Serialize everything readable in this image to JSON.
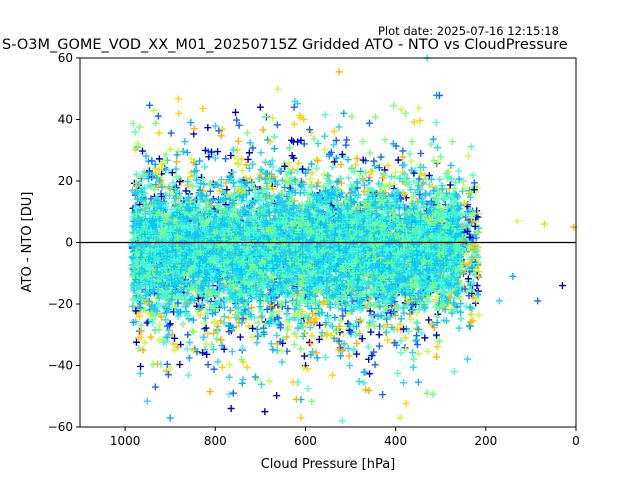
{
  "plot_date_label": "Plot date: 2025-07-16 12:15:18",
  "chart_data": {
    "type": "scatter",
    "title": "S-O3M_GOME_VOD_XX_M01_20250715Z Gridded ATO - NTO vs CloudPressure",
    "xlabel": "Cloud Pressure [hPa]",
    "ylabel": "ATO - NTO [DU]",
    "xlim": [
      1100,
      0
    ],
    "ylim": [
      -60,
      60
    ],
    "x_inverted": true,
    "xticks": [
      1000,
      800,
      600,
      400,
      200,
      0
    ],
    "yticks": [
      -60,
      -40,
      -20,
      0,
      20,
      40,
      60
    ],
    "reference_line_y": 0,
    "marker": "+",
    "grid": false,
    "legend": "none",
    "palette": [
      "#0000cd",
      "#1f5fff",
      "#00b0ff",
      "#2ad8ec",
      "#4dffd0",
      "#7dff7a",
      "#c8ff3c",
      "#ffd400",
      "#ffb000"
    ],
    "point_density": {
      "description_bins": "approximate point clouds read from the figure (hPa, DU)",
      "core": {
        "x_range": [
          985,
          215
        ],
        "y_center": 0,
        "y_spread": 14
      },
      "outliers": [
        {
          "x": 700,
          "y": 44
        },
        {
          "x": 625,
          "y": 44
        },
        {
          "x": 515,
          "y": 42
        },
        {
          "x": 330,
          "y": 60
        },
        {
          "x": 310,
          "y": 39
        },
        {
          "x": 250,
          "y": 20
        },
        {
          "x": 130,
          "y": 7
        },
        {
          "x": 70,
          "y": 6
        },
        {
          "x": 5,
          "y": 5
        },
        {
          "x": 30,
          "y": -14
        },
        {
          "x": 85,
          "y": -19
        },
        {
          "x": 140,
          "y": -11
        },
        {
          "x": 170,
          "y": -19
        },
        {
          "x": 270,
          "y": -42
        },
        {
          "x": 330,
          "y": -49
        },
        {
          "x": 390,
          "y": -57
        },
        {
          "x": 610,
          "y": -57
        },
        {
          "x": 620,
          "y": -51
        },
        {
          "x": 690,
          "y": -55
        },
        {
          "x": 760,
          "y": -49
        }
      ]
    }
  }
}
